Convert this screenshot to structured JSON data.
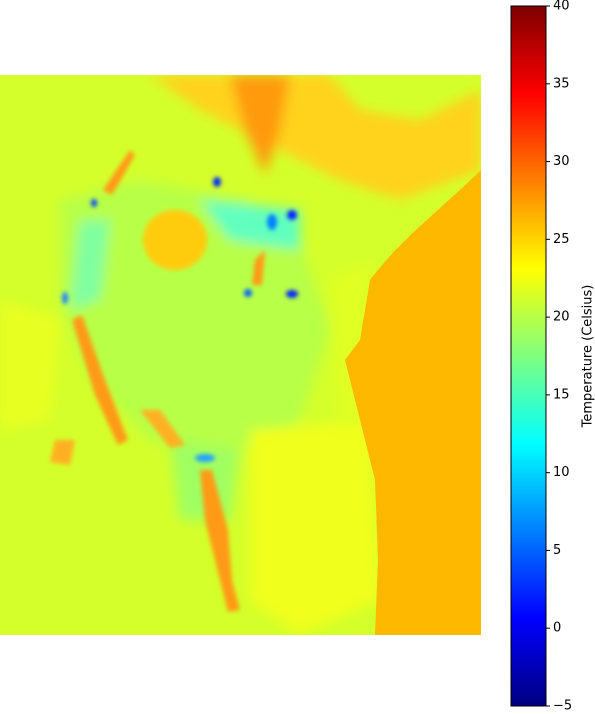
{
  "colorbar": {
    "label": "Temperature (Celsius)",
    "lim": [
      -5,
      40
    ],
    "ticks": [
      {
        "value": -5,
        "label": "−5"
      },
      0,
      5,
      10,
      15,
      20,
      25,
      30,
      35,
      40
    ]
  }
}
